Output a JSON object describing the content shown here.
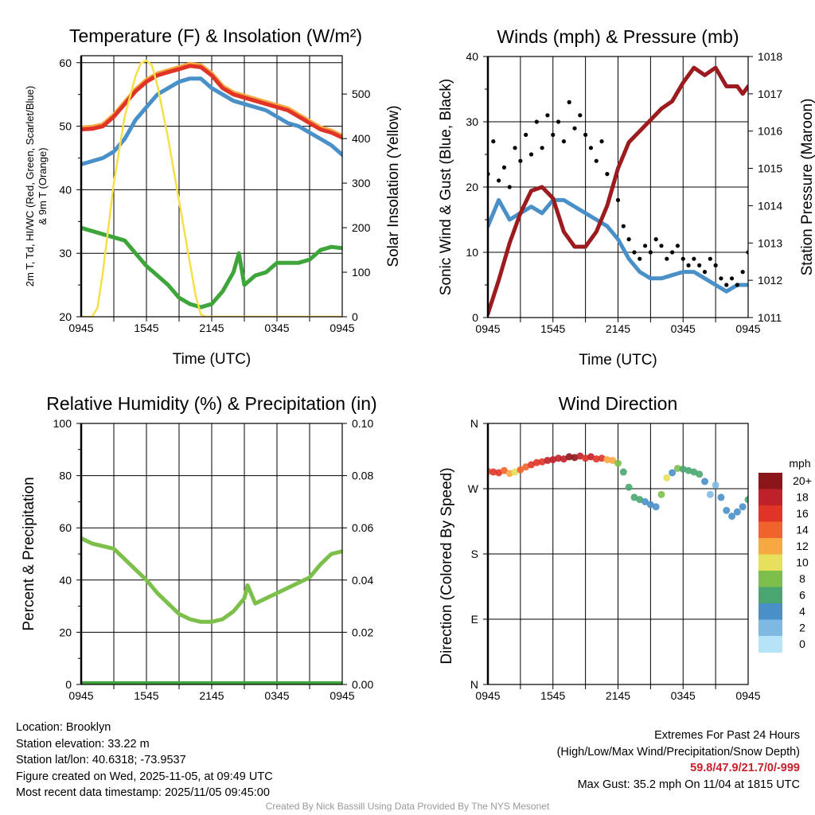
{
  "footer": {
    "location": "Location: Brooklyn",
    "elevation": "Station elevation: 33.22 m",
    "latlon": "Station lat/lon: 40.6318; -73.9537",
    "created": "Figure created on Wed, 2025-11-05, at 09:49 UTC",
    "recent": "Most recent data timestamp: 2025/11/05 09:45:00",
    "extremes_title": "Extremes For Past 24 Hours",
    "extremes_sub": "(High/Low/Max Wind/Precipitation/Snow Depth)",
    "extremes_values": "59.8/47.9/21.7/0/-999",
    "max_gust": "Max Gust: 35.2 mph On 11/04 at 1815 UTC",
    "credit": "Created By Nick Bassill Using Data Provided By The NYS Mesonet"
  },
  "chart_data": [
    {
      "type": "line",
      "title": "Temperature (F) & Insolation (W/m²)",
      "xlabel": "Time (UTC)",
      "ylabel": [
        "2m T, Td, HI/WC (Red, Green, Scarlet/Blue)",
        "& 9m T (Orange)"
      ],
      "ylabel_right": "Solar Insolation (Yellow)",
      "xticks": [
        "0945",
        "1545",
        "2145",
        "0345",
        "0945"
      ],
      "xlim_hours": [
        0,
        24
      ],
      "ylim": [
        20,
        61.1
      ],
      "yticks": [
        "20",
        "30",
        "40",
        "50",
        "60"
      ],
      "ylim_right": [
        0,
        586
      ],
      "yticks_right": [
        "0",
        "100",
        "200",
        "300",
        "400",
        "500"
      ],
      "grid": true,
      "series": [
        {
          "name": "9m T",
          "color": "#f7a840",
          "axis": "left",
          "x": [
            0,
            1,
            2,
            3,
            4,
            5,
            6,
            7,
            8,
            9,
            10,
            11,
            12,
            13,
            14,
            15,
            16,
            17,
            18,
            19,
            20,
            21,
            22,
            23,
            24
          ],
          "values": [
            49.8,
            49.9,
            50.3,
            51.8,
            53.8,
            55.8,
            57.3,
            58.3,
            58.8,
            59.3,
            59.8,
            59.6,
            58.3,
            56.3,
            55.3,
            54.8,
            54.3,
            53.8,
            53.3,
            52.8,
            51.8,
            50.8,
            49.8,
            49.3,
            48.5
          ]
        },
        {
          "name": "2m T",
          "color": "#e03428",
          "axis": "left",
          "x": [
            0,
            1,
            2,
            3,
            4,
            5,
            6,
            7,
            8,
            9,
            10,
            11,
            12,
            13,
            14,
            15,
            16,
            17,
            18,
            19,
            20,
            21,
            22,
            23,
            24
          ],
          "values": [
            49.5,
            49.6,
            50,
            51.5,
            53.5,
            55.5,
            57,
            58,
            58.5,
            59,
            59.5,
            59.3,
            58,
            56,
            55,
            54.5,
            54,
            53.5,
            53,
            52.5,
            51.5,
            50.5,
            49.5,
            49,
            48.2
          ]
        },
        {
          "name": "HI/WC",
          "color": "#4a90c8",
          "axis": "left",
          "x": [
            0,
            1,
            2,
            3,
            4,
            5,
            6,
            7,
            8,
            9,
            10,
            11,
            12,
            13,
            14,
            15,
            16,
            17,
            18,
            19,
            20,
            21,
            22,
            23,
            24
          ],
          "values": [
            44,
            44.5,
            45,
            46,
            48,
            51,
            53,
            55,
            56,
            57,
            57.5,
            57.5,
            56,
            55,
            54,
            53.5,
            53,
            52.5,
            51.5,
            50.5,
            50,
            49,
            48,
            47,
            45.5
          ]
        },
        {
          "name": "Td",
          "color": "#3ea53a",
          "axis": "left",
          "x": [
            0,
            1,
            2,
            3,
            4,
            5,
            6,
            7,
            8,
            9,
            10,
            11,
            12,
            13,
            14,
            14.5,
            15,
            16,
            17,
            18,
            19,
            20,
            21,
            22,
            23,
            24
          ],
          "values": [
            34,
            33.5,
            33,
            32.5,
            32,
            30,
            28,
            26.5,
            25,
            23,
            22,
            21.5,
            22,
            24,
            27,
            30,
            25,
            26.5,
            27,
            28.5,
            28.5,
            28.5,
            29,
            30.5,
            31,
            30.8
          ]
        },
        {
          "name": "Solar Insolation",
          "color": "#f5e04a",
          "axis": "right",
          "x": [
            0,
            1,
            1.5,
            2,
            3,
            4,
            5,
            5.5,
            6,
            6.5,
            7,
            8,
            9,
            10,
            10.5,
            11,
            11.5,
            12,
            24
          ],
          "values": [
            0,
            0,
            20,
            100,
            300,
            450,
            540,
            570,
            575,
            565,
            520,
            400,
            260,
            120,
            50,
            5,
            0,
            0,
            0
          ]
        }
      ]
    },
    {
      "type": "scatter",
      "title": "Winds (mph) & Pressure (mb)",
      "xlabel": "Time (UTC)",
      "ylabel": "Sonic Wind & Gust (Blue, Black)",
      "ylabel_right": "Station Pressure (Maroon)",
      "xticks": [
        "0945",
        "1545",
        "2145",
        "0345",
        "0945"
      ],
      "xlim_hours": [
        0,
        24
      ],
      "ylim": [
        0,
        40
      ],
      "yticks": [
        "0",
        "10",
        "20",
        "30",
        "40"
      ],
      "ylim_right": [
        1011,
        1018
      ],
      "yticks_right": [
        "1011",
        "1012",
        "1013",
        "1014",
        "1015",
        "1016",
        "1017",
        "1018"
      ],
      "grid": true,
      "series": [
        {
          "name": "Sonic Wind",
          "color": "#4a90c8",
          "kind": "line",
          "axis": "left",
          "x": [
            0,
            1,
            2,
            3,
            4,
            5,
            6,
            7,
            8,
            9,
            10,
            11,
            12,
            13,
            14,
            15,
            16,
            17,
            18,
            19,
            20,
            21,
            22,
            23,
            24
          ],
          "values": [
            14,
            18,
            15,
            16,
            17,
            16,
            18,
            18,
            17,
            16,
            15,
            14,
            12,
            9,
            7,
            6,
            6,
            6.5,
            7,
            7,
            6,
            5,
            4,
            5,
            5
          ]
        },
        {
          "name": "Gust",
          "color": "#000000",
          "kind": "points",
          "axis": "left",
          "x": [
            0,
            0.5,
            1,
            1.5,
            2,
            2.5,
            3,
            3.5,
            4,
            4.5,
            5,
            5.5,
            6,
            6.5,
            7,
            7.5,
            8,
            8.5,
            9,
            9.5,
            10,
            10.5,
            11,
            11.5,
            12,
            12.5,
            13,
            13.5,
            14,
            14.5,
            15,
            15.5,
            16,
            16.5,
            17,
            17.5,
            18,
            18.5,
            19,
            19.5,
            20,
            20.5,
            21,
            21.5,
            22,
            22.5,
            23,
            23.5,
            24
          ],
          "values": [
            22,
            27,
            21,
            23,
            20,
            26,
            24,
            28,
            25,
            30,
            26,
            31,
            28,
            30,
            27,
            33,
            29,
            31,
            28,
            26,
            24,
            27,
            22,
            20,
            18,
            14,
            12,
            10,
            9,
            11,
            10,
            12,
            11,
            9,
            10,
            11,
            9,
            8,
            9,
            8,
            7,
            9,
            8,
            6,
            5,
            6,
            5,
            7,
            10
          ]
        },
        {
          "name": "Station Pressure",
          "color": "#9b1b1e",
          "kind": "line",
          "axis": "right",
          "x": [
            0,
            1,
            2,
            3,
            4,
            5,
            6,
            7,
            8,
            9,
            10,
            11,
            12,
            13,
            14,
            15,
            16,
            17,
            18,
            19,
            20,
            21,
            22,
            23,
            23.5,
            24
          ],
          "values": [
            1011.1,
            1012,
            1013,
            1013.8,
            1014.4,
            1014.5,
            1014.2,
            1013.3,
            1012.9,
            1012.9,
            1013.3,
            1014,
            1015,
            1015.7,
            1016,
            1016.3,
            1016.6,
            1016.8,
            1017.3,
            1017.7,
            1017.5,
            1017.7,
            1017.2,
            1017.2,
            1017,
            1017.2
          ]
        }
      ]
    },
    {
      "type": "line",
      "title": "Relative Humidity (%) & Precipitation (in)",
      "xlabel": "",
      "ylabel": "Percent & Precipitation",
      "xticks": [
        "0945",
        "1545",
        "2145",
        "0345",
        "0945"
      ],
      "xlim_hours": [
        0,
        24
      ],
      "ylim": [
        0,
        100
      ],
      "yticks": [
        "0",
        "20",
        "40",
        "60",
        "80",
        "100"
      ],
      "ylim_right": [
        0,
        0.1
      ],
      "yticks_right": [
        "0.00",
        "0.02",
        "0.04",
        "0.06",
        "0.08",
        "0.10"
      ],
      "grid": true,
      "series": [
        {
          "name": "Relative Humidity",
          "color": "#7cc04b",
          "axis": "left",
          "x": [
            0,
            1,
            2,
            3,
            4,
            5,
            6,
            7,
            8,
            9,
            10,
            11,
            12,
            13,
            14,
            15,
            15.3,
            16,
            17,
            18,
            19,
            20,
            21,
            22,
            23,
            24
          ],
          "values": [
            56,
            54,
            53,
            52,
            48,
            44,
            40,
            35,
            31,
            27,
            25,
            24,
            24,
            25,
            28,
            33,
            38,
            31,
            33,
            35,
            37,
            39,
            41,
            46,
            50,
            51
          ]
        },
        {
          "name": "Precipitation",
          "color": "#3ea53a",
          "axis": "right",
          "x": [
            0,
            24
          ],
          "values": [
            0,
            0
          ]
        }
      ]
    },
    {
      "type": "scatter",
      "title": "Wind Direction",
      "xlabel": "",
      "ylabel": "Direction (Colored By Speed)",
      "xticks": [
        "0945",
        "1545",
        "2145",
        "0345",
        "0945"
      ],
      "xlim_hours": [
        0,
        24
      ],
      "ylim": [
        0,
        360
      ],
      "yticks": [
        "N",
        "E",
        "S",
        "W",
        "N"
      ],
      "grid": true,
      "x": [
        0,
        0.5,
        1,
        1.5,
        2,
        2.5,
        3,
        3.5,
        4,
        4.5,
        5,
        5.5,
        6,
        6.5,
        7,
        7.5,
        8,
        8.5,
        9,
        9.5,
        10,
        10.5,
        11,
        11.5,
        12,
        12.5,
        13,
        13.5,
        14,
        14.5,
        15,
        15.5,
        16,
        16.5,
        17,
        17.5,
        18,
        18.5,
        19,
        19.5,
        20,
        20.5,
        21,
        21.5,
        22,
        22.5,
        23,
        23.5,
        24
      ],
      "direction": [
        294,
        293,
        292,
        295,
        291,
        293,
        296,
        300,
        303,
        306,
        307,
        309,
        310,
        312,
        311,
        314,
        313,
        315,
        312,
        314,
        311,
        312,
        310,
        309,
        305,
        293,
        272,
        258,
        255,
        252,
        248,
        245,
        262,
        285,
        292,
        298,
        297,
        295,
        293,
        290,
        280,
        262,
        275,
        258,
        240,
        232,
        238,
        245,
        255
      ],
      "speed": [
        14,
        16,
        17,
        15,
        12,
        11,
        15,
        14,
        16,
        17,
        17,
        18,
        18,
        19,
        19,
        20,
        20,
        19,
        17,
        18,
        16,
        17,
        13,
        12,
        8,
        7,
        7,
        6,
        6,
        5,
        4,
        4,
        9,
        10,
        5,
        8,
        6,
        6,
        6,
        7,
        4,
        3,
        2,
        4,
        4,
        4,
        4,
        5,
        6
      ],
      "colorbar": {
        "label": "mph",
        "levels": [
          "0",
          "2",
          "4",
          "6",
          "8",
          "10",
          "12",
          "14",
          "16",
          "18",
          "20+"
        ],
        "colors": [
          "#b7e3f7",
          "#7fb9e2",
          "#4a90c8",
          "#4aa671",
          "#7cc04b",
          "#e6e05a",
          "#f7a840",
          "#f0642b",
          "#e03428",
          "#c0202a",
          "#8c1519"
        ]
      }
    }
  ]
}
